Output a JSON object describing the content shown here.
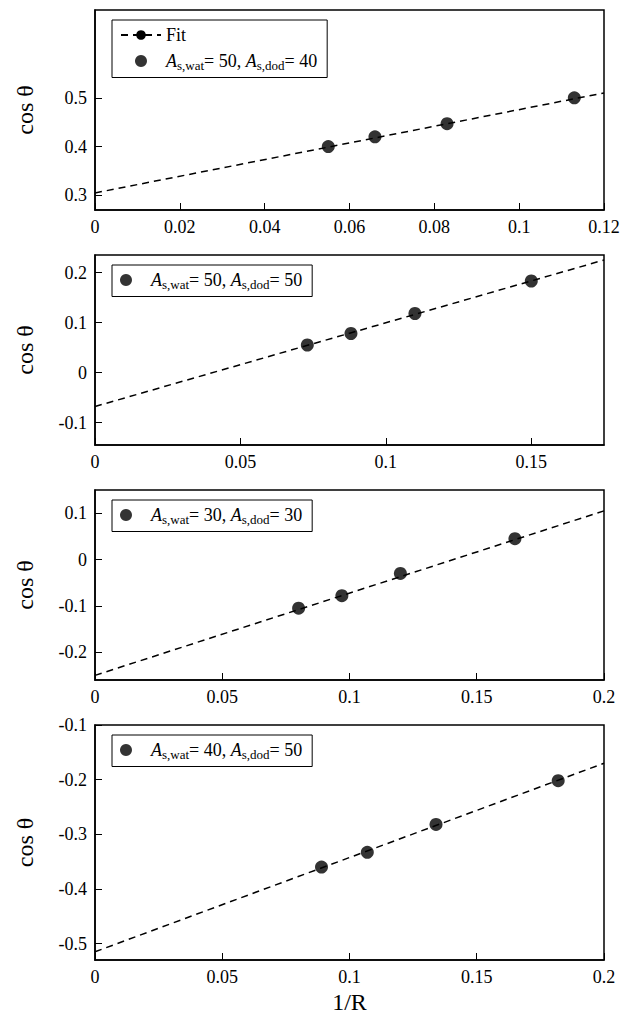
{
  "chart_data": [
    {
      "type": "scatter",
      "ylabel": "cos θ",
      "xlim": [
        0,
        0.12
      ],
      "xticks": [
        0,
        0.02,
        0.04,
        0.06,
        0.08,
        0.1,
        0.12
      ],
      "ylim": [
        0.27,
        0.68
      ],
      "yticks": [
        0.3,
        0.4,
        0.5
      ],
      "grid": false,
      "legend": "upper left",
      "series": [
        {
          "name": "Fit",
          "type": "line",
          "line_style": "dashed",
          "color": "#000000",
          "x": [
            0,
            0.12
          ],
          "values": [
            0.305,
            0.51
          ]
        },
        {
          "name": "As,wat= 50, As,dod= 40",
          "type": "scatter",
          "marker": "circle",
          "color": "#000000",
          "x": [
            0.055,
            0.066,
            0.083,
            0.113
          ],
          "values": [
            0.4,
            0.42,
            0.447,
            0.5
          ]
        }
      ]
    },
    {
      "type": "scatter",
      "ylabel": "cos θ",
      "xlim": [
        0,
        0.175
      ],
      "xticks": [
        0,
        0.05,
        0.1,
        0.15
      ],
      "ylim": [
        -0.145,
        0.235
      ],
      "yticks": [
        -0.1,
        0,
        0.1,
        0.2
      ],
      "grid": false,
      "legend": "upper left",
      "series": [
        {
          "type": "line",
          "line_style": "dashed",
          "color": "#000000",
          "x": [
            0,
            0.175
          ],
          "values": [
            -0.068,
            0.225
          ]
        },
        {
          "name": "As,wat= 50, As,dod= 50",
          "type": "scatter",
          "marker": "circle",
          "color": "#000000",
          "x": [
            0.073,
            0.088,
            0.11,
            0.15
          ],
          "values": [
            0.055,
            0.078,
            0.118,
            0.183
          ]
        }
      ]
    },
    {
      "type": "scatter",
      "ylabel": "cos θ",
      "xlim": [
        0,
        0.2
      ],
      "xticks": [
        0,
        0.05,
        0.1,
        0.15,
        0.2
      ],
      "ylim": [
        -0.26,
        0.15
      ],
      "yticks": [
        -0.2,
        -0.1,
        0,
        0.1
      ],
      "grid": false,
      "legend": "upper left",
      "series": [
        {
          "type": "line",
          "line_style": "dashed",
          "color": "#000000",
          "x": [
            0,
            0.2
          ],
          "values": [
            -0.25,
            0.105
          ]
        },
        {
          "name": "As,wat= 30, As,dod= 30",
          "type": "scatter",
          "marker": "circle",
          "color": "#000000",
          "x": [
            0.08,
            0.097,
            0.12,
            0.165
          ],
          "values": [
            -0.105,
            -0.078,
            -0.03,
            0.045
          ]
        }
      ]
    },
    {
      "type": "scatter",
      "ylabel": "cos θ",
      "xlabel": "1/R",
      "xlim": [
        0,
        0.2
      ],
      "xticks": [
        0,
        0.05,
        0.1,
        0.15,
        0.2
      ],
      "ylim": [
        -0.53,
        -0.1
      ],
      "yticks": [
        -0.5,
        -0.4,
        -0.3,
        -0.2,
        -0.1
      ],
      "grid": false,
      "legend": "upper left",
      "series": [
        {
          "type": "line",
          "line_style": "dashed",
          "color": "#000000",
          "x": [
            0,
            0.2
          ],
          "values": [
            -0.515,
            -0.17
          ]
        },
        {
          "name": "As,wat= 40, As,dod= 50",
          "type": "scatter",
          "marker": "circle",
          "color": "#000000",
          "x": [
            0.089,
            0.107,
            0.134,
            0.182
          ],
          "values": [
            -0.36,
            -0.333,
            -0.282,
            -0.202
          ]
        }
      ]
    }
  ]
}
